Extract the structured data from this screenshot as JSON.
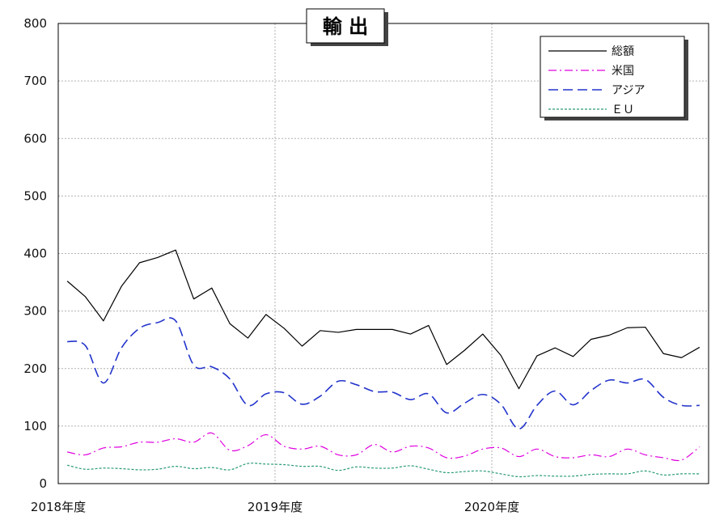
{
  "chart_data": {
    "type": "line",
    "title": "輸 出",
    "xlabel": "",
    "ylabel": "",
    "ylim": [
      0,
      800
    ],
    "y_ticks": [
      "0",
      "100",
      "200",
      "300",
      "400",
      "500",
      "600",
      "700",
      "800"
    ],
    "x_tick_labels": [
      "2018年度",
      "2019年度",
      "2020年度"
    ],
    "grid": true,
    "legend_position": "top-right",
    "x_months": 36,
    "series": [
      {
        "name": "総額",
        "color": "#000000",
        "style": "solid",
        "values": [
          352,
          325,
          283,
          343,
          384,
          393,
          406,
          321,
          340,
          278,
          253,
          294,
          270,
          239,
          266,
          263,
          268,
          268,
          268,
          260,
          275,
          207,
          232,
          260,
          223,
          165,
          222,
          236,
          221,
          251,
          258,
          271,
          272,
          226,
          219,
          237
        ]
      },
      {
        "name": "米国",
        "color": "#e000e0",
        "style": "dashdot",
        "values": [
          55,
          50,
          62,
          64,
          72,
          72,
          78,
          72,
          88,
          58,
          66,
          85,
          65,
          60,
          65,
          50,
          50,
          68,
          55,
          65,
          62,
          45,
          48,
          60,
          62,
          47,
          60,
          47,
          45,
          50,
          47,
          60,
          50,
          45,
          41,
          64
        ]
      },
      {
        "name": "アジア",
        "color": "#2233cc",
        "style": "dashed",
        "values": [
          247,
          240,
          175,
          236,
          270,
          280,
          283,
          206,
          203,
          182,
          136,
          156,
          158,
          138,
          152,
          178,
          172,
          160,
          159,
          146,
          156,
          123,
          140,
          155,
          138,
          95,
          136,
          161,
          137,
          162,
          180,
          175,
          181,
          150,
          136,
          136
        ]
      },
      {
        "name": "ＥＵ",
        "color": "#2a9a7a",
        "style": "dotted",
        "values": [
          32,
          25,
          27,
          26,
          24,
          25,
          30,
          26,
          28,
          24,
          35,
          34,
          33,
          30,
          30,
          23,
          29,
          27,
          27,
          31,
          25,
          19,
          21,
          22,
          17,
          12,
          14,
          13,
          13,
          16,
          17,
          17,
          22,
          15,
          17,
          17
        ]
      }
    ]
  }
}
